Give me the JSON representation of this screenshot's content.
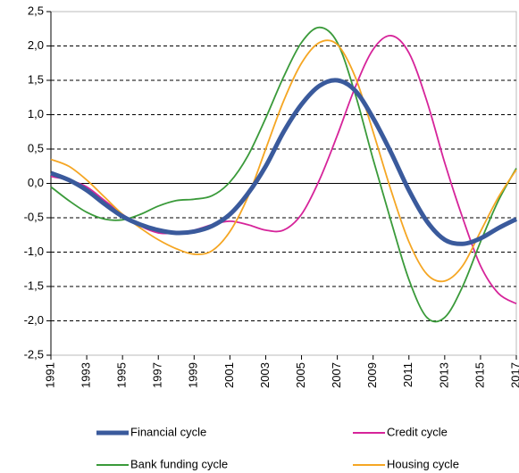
{
  "chart_data": {
    "type": "line",
    "x": [
      1991,
      1992,
      1993,
      1994,
      1995,
      1996,
      1997,
      1998,
      1999,
      2000,
      2001,
      2002,
      2003,
      2004,
      2005,
      2006,
      2007,
      2008,
      2009,
      2010,
      2011,
      2012,
      2013,
      2014,
      2015,
      2016,
      2017
    ],
    "xlim": [
      1991,
      2017
    ],
    "xticks": [
      1991,
      1993,
      1995,
      1997,
      1999,
      2001,
      2003,
      2005,
      2007,
      2009,
      2011,
      2013,
      2015,
      2017
    ],
    "ylim": [
      -2.5,
      2.5
    ],
    "yticks": [
      {
        "value": -2.5,
        "label": "-2,5"
      },
      {
        "value": -2,
        "label": "-2,0"
      },
      {
        "value": -1.5,
        "label": "-1,5"
      },
      {
        "value": -1,
        "label": "-1,0"
      },
      {
        "value": -0.5,
        "label": "-0,5"
      },
      {
        "value": 0,
        "label": "0,0"
      },
      {
        "value": 0.5,
        "label": "0,5"
      },
      {
        "value": 1,
        "label": "1,0"
      },
      {
        "value": 1.5,
        "label": "1,5"
      },
      {
        "value": 2,
        "label": "2,0"
      },
      {
        "value": 2.5,
        "label": "2,5"
      }
    ],
    "grid": true,
    "series": [
      {
        "name": "Financial cycle",
        "color": "#3a5a9c",
        "values": [
          0.15,
          0.05,
          -0.1,
          -0.3,
          -0.48,
          -0.6,
          -0.68,
          -0.72,
          -0.7,
          -0.62,
          -0.45,
          -0.15,
          0.25,
          0.75,
          1.15,
          1.42,
          1.5,
          1.35,
          0.95,
          0.45,
          -0.1,
          -0.55,
          -0.82,
          -0.88,
          -0.8,
          -0.65,
          -0.52
        ]
      },
      {
        "name": "Credit cycle",
        "color": "#d6249a",
        "values": [
          0.1,
          0.05,
          -0.05,
          -0.25,
          -0.45,
          -0.62,
          -0.72,
          -0.72,
          -0.68,
          -0.6,
          -0.55,
          -0.6,
          -0.68,
          -0.68,
          -0.45,
          0.05,
          0.7,
          1.4,
          1.95,
          2.15,
          1.9,
          1.2,
          0.3,
          -0.5,
          -1.2,
          -1.6,
          -1.75
        ]
      },
      {
        "name": "Bank funding cycle",
        "color": "#3a9a3a",
        "values": [
          -0.05,
          -0.25,
          -0.42,
          -0.52,
          -0.53,
          -0.45,
          -0.33,
          -0.25,
          -0.23,
          -0.18,
          0.02,
          0.4,
          0.95,
          1.55,
          2.05,
          2.27,
          2.05,
          1.3,
          0.35,
          -0.55,
          -1.4,
          -1.95,
          -1.95,
          -1.5,
          -0.85,
          -0.25,
          0.22
        ]
      },
      {
        "name": "Housing cycle",
        "color": "#f5a623",
        "values": [
          0.35,
          0.25,
          0.05,
          -0.2,
          -0.45,
          -0.65,
          -0.82,
          -0.95,
          -1.03,
          -0.98,
          -0.7,
          -0.2,
          0.5,
          1.2,
          1.75,
          2.05,
          2.02,
          1.55,
          0.75,
          -0.1,
          -0.85,
          -1.32,
          -1.42,
          -1.2,
          -0.7,
          -0.2,
          0.2
        ]
      }
    ]
  }
}
